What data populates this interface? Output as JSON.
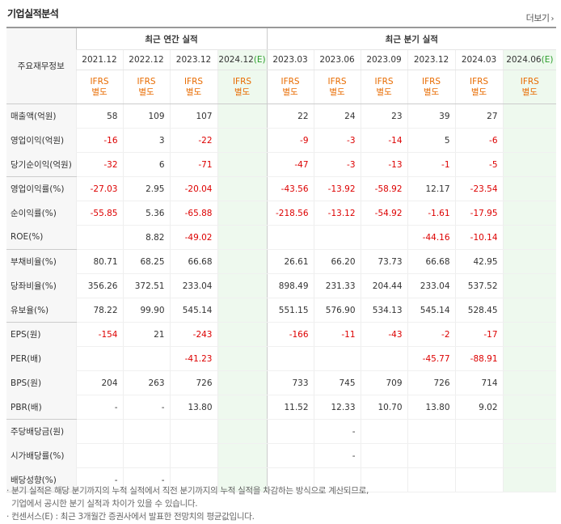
{
  "header": {
    "title": "기업실적분석",
    "more_label": "더보기"
  },
  "table": {
    "label_header": "주요재무정보",
    "annual_group": "최근 연간 실적",
    "quarter_group": "최근 분기 실적",
    "periods": [
      {
        "label": "2021.12",
        "est": ""
      },
      {
        "label": "2022.12",
        "est": ""
      },
      {
        "label": "2023.12",
        "est": ""
      },
      {
        "label": "2024.12",
        "est": "(E)"
      },
      {
        "label": "2023.03",
        "est": ""
      },
      {
        "label": "2023.06",
        "est": ""
      },
      {
        "label": "2023.09",
        "est": ""
      },
      {
        "label": "2023.12",
        "est": ""
      },
      {
        "label": "2024.03",
        "est": ""
      },
      {
        "label": "2024.06",
        "est": "(E)"
      }
    ],
    "ifrs_line1": "IFRS",
    "ifrs_line2": "별도",
    "rows": [
      {
        "label": "매출액(억원)",
        "values": [
          "58",
          "109",
          "107",
          "",
          "22",
          "24",
          "23",
          "39",
          "27",
          ""
        ]
      },
      {
        "label": "영업이익(억원)",
        "values": [
          "-16",
          "3",
          "-22",
          "",
          "-9",
          "-3",
          "-14",
          "5",
          "-6",
          ""
        ]
      },
      {
        "label": "당기순이익(억원)",
        "values": [
          "-32",
          "6",
          "-71",
          "",
          "-47",
          "-3",
          "-13",
          "-1",
          "-5",
          ""
        ]
      },
      {
        "label": "영업이익률(%)",
        "values": [
          "-27.03",
          "2.95",
          "-20.04",
          "",
          "-43.56",
          "-13.92",
          "-58.92",
          "12.17",
          "-23.54",
          ""
        ]
      },
      {
        "label": "순이익률(%)",
        "values": [
          "-55.85",
          "5.36",
          "-65.88",
          "",
          "-218.56",
          "-13.12",
          "-54.92",
          "-1.61",
          "-17.95",
          ""
        ]
      },
      {
        "label": "ROE(%)",
        "values": [
          "",
          "8.82",
          "-49.02",
          "",
          "",
          "",
          "",
          "-44.16",
          "-10.14",
          ""
        ]
      },
      {
        "label": "부채비율(%)",
        "values": [
          "80.71",
          "68.25",
          "66.68",
          "",
          "26.61",
          "66.20",
          "73.73",
          "66.68",
          "42.95",
          ""
        ]
      },
      {
        "label": "당좌비율(%)",
        "values": [
          "356.26",
          "372.51",
          "233.04",
          "",
          "898.49",
          "231.33",
          "204.44",
          "233.04",
          "537.52",
          ""
        ]
      },
      {
        "label": "유보율(%)",
        "values": [
          "78.22",
          "99.90",
          "545.14",
          "",
          "551.15",
          "576.90",
          "534.13",
          "545.14",
          "528.45",
          ""
        ]
      },
      {
        "label": "EPS(원)",
        "values": [
          "-154",
          "21",
          "-243",
          "",
          "-166",
          "-11",
          "-43",
          "-2",
          "-17",
          ""
        ]
      },
      {
        "label": "PER(배)",
        "values": [
          "",
          "",
          "-41.23",
          "",
          "",
          "",
          "",
          "-45.77",
          "-88.91",
          ""
        ]
      },
      {
        "label": "BPS(원)",
        "values": [
          "204",
          "263",
          "726",
          "",
          "733",
          "745",
          "709",
          "726",
          "714",
          ""
        ]
      },
      {
        "label": "PBR(배)",
        "values": [
          "-",
          "-",
          "13.80",
          "",
          "11.52",
          "12.33",
          "10.70",
          "13.80",
          "9.02",
          ""
        ]
      },
      {
        "label": "주당배당금(원)",
        "values": [
          "",
          "",
          "",
          "",
          "",
          "-",
          "",
          "",
          "",
          ""
        ]
      },
      {
        "label": "시가배당률(%)",
        "values": [
          "",
          "",
          "",
          "",
          "",
          "-",
          "",
          "",
          "",
          ""
        ]
      },
      {
        "label": "배당성향(%)",
        "values": [
          "-",
          "-",
          "",
          "",
          "",
          "",
          "",
          "",
          "",
          ""
        ]
      }
    ]
  },
  "notes": [
    "· 분기 실적은 해당 분기까지의 누적 실적에서 직전 분기까지의 누적 실적을 차감하는 방식으로 계산되므로,",
    "  기업에서 공시한 분기 실적과 차이가 있을 수 있습니다.",
    "· 컨센서스(E) : 최근 3개월간 증권사에서 발표한 전망치의 평균값입니다."
  ],
  "colors": {
    "negative": "#dd0000",
    "ifrs": "#e86b00",
    "estimate_bg": "#eef9ee"
  }
}
